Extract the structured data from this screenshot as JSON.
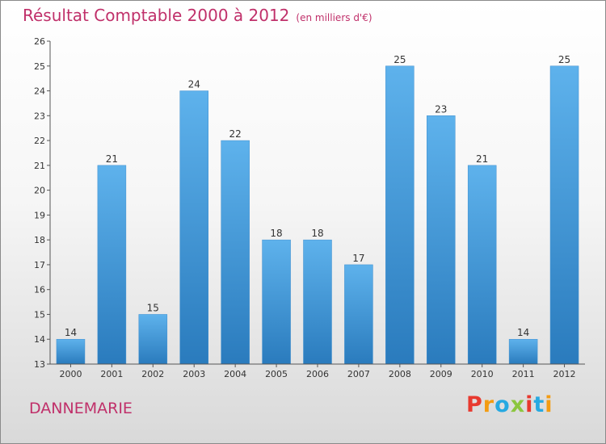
{
  "header": {
    "title": "Résultat Comptable 2000 à 2012",
    "unit": "(en milliers d'€)"
  },
  "footer": {
    "commune": "DANNEMARIE"
  },
  "logo": {
    "text": "Proxiti",
    "letters": [
      "P",
      "r",
      "o",
      "x",
      "i",
      "t",
      "i"
    ],
    "colors": [
      "#e8392f",
      "#f39c12",
      "#27a9e1",
      "#8cc63f",
      "#e8392f",
      "#27a9e1",
      "#f39c12"
    ]
  },
  "colors": {
    "bar_light": "#5eb2ec",
    "bar_dark": "#2a7bbd",
    "title": "#c0306a"
  },
  "chart_data": {
    "type": "bar",
    "title": "Résultat Comptable 2000 à 2012",
    "subtitle": "(en milliers d'€)",
    "xlabel": "",
    "ylabel": "",
    "categories": [
      "2000",
      "2001",
      "2002",
      "2003",
      "2004",
      "2005",
      "2006",
      "2007",
      "2008",
      "2009",
      "2010",
      "2011",
      "2012"
    ],
    "values": [
      14,
      21,
      15,
      24,
      22,
      18,
      18,
      17,
      25,
      23,
      21,
      14,
      25
    ],
    "data_labels": [
      "14",
      "21",
      "15",
      "24",
      "22",
      "18",
      "18",
      "17",
      "25",
      "23",
      "21",
      "14",
      "25"
    ],
    "ylim": [
      13,
      26
    ],
    "yticks": [
      13,
      14,
      15,
      16,
      17,
      18,
      19,
      20,
      21,
      22,
      23,
      24,
      25,
      26
    ],
    "ytick_labels": [
      "13",
      "14",
      "15",
      "16",
      "17",
      "18",
      "19",
      "20",
      "21",
      "22",
      "23",
      "24",
      "25",
      "26"
    ],
    "grid": false,
    "legend": "none"
  }
}
